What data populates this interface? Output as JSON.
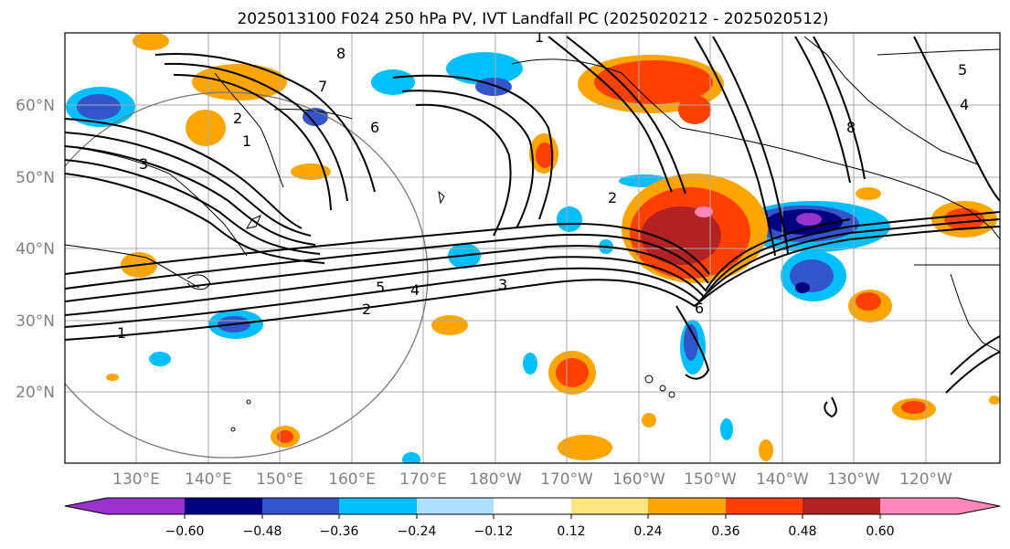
{
  "title": "2025013100 F024 250 hPa PV, IVT Landfall PC (2025020212 - 2025020512)",
  "map": {
    "lat_labels": [
      "60°N",
      "50°N",
      "40°N",
      "30°N",
      "20°N"
    ],
    "lon_labels": [
      "130°E",
      "140°E",
      "150°E",
      "160°E",
      "170°E",
      "180°W",
      "170°W",
      "160°W",
      "150°W",
      "140°W",
      "130°W",
      "120°W"
    ]
  },
  "contour_labels": [
    "1",
    "2",
    "3",
    "4",
    "5",
    "6",
    "7",
    "8"
  ],
  "colorbar": {
    "colors": [
      "#9933cc",
      "#000080",
      "#3355cc",
      "#00bfff",
      "#b0e0ff",
      "#ffffff",
      "#ffe680",
      "#ffa500",
      "#ff4000",
      "#b22222",
      "#ff88bb"
    ],
    "tick_labels": [
      "−0.60",
      "−0.48",
      "−0.36",
      "−0.24",
      "−0.12",
      "0.12",
      "0.24",
      "0.36",
      "0.48",
      "0.60"
    ]
  }
}
